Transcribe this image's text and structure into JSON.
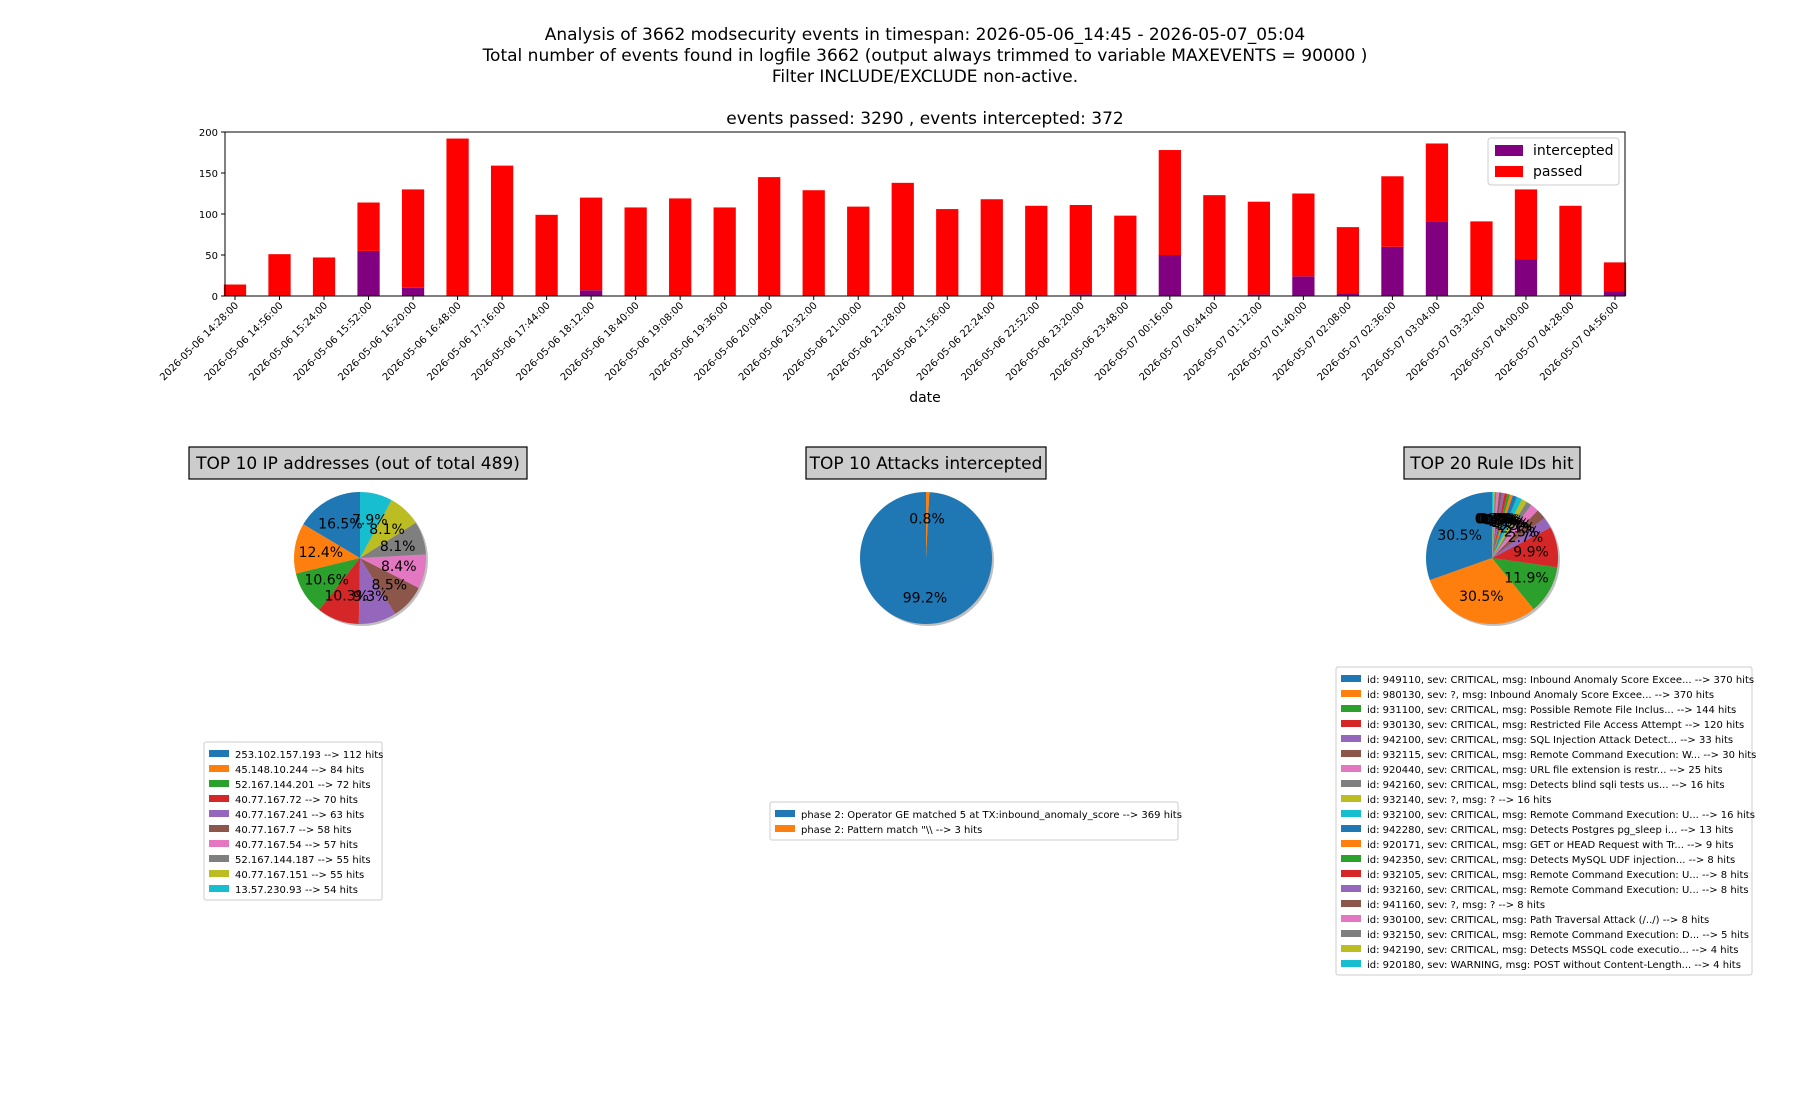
{
  "header": {
    "line1": "Analysis of 3662 modsecurity events in timespan: 2026-05-06_14:45 - 2026-05-07_05:04",
    "line2": "Total number of events found in logfile 3662 (output always trimmed to variable MAXEVENTS = 90000 )",
    "line3": "Filter INCLUDE/EXCLUDE non-active."
  },
  "colors": {
    "intercepted": "#800080",
    "passed": "#ff0000",
    "palette": [
      "#1f77b4",
      "#ff7f0e",
      "#2ca02c",
      "#d62728",
      "#9467bd",
      "#8c564b",
      "#e377c2",
      "#7f7f7f",
      "#bcbd22",
      "#17becf"
    ],
    "title_box": "#cccccc"
  },
  "chart_data": [
    {
      "type": "bar",
      "stacked": true,
      "title": "events passed: 3290 , events intercepted: 372",
      "xlabel": "date",
      "ylabel": "",
      "ylim": [
        0,
        200
      ],
      "yticks": [
        0,
        50,
        100,
        150,
        200
      ],
      "legend": "top-right",
      "categories": [
        "2026-05-06 14:28:00",
        "2026-05-06 14:56:00",
        "2026-05-06 15:24:00",
        "2026-05-06 15:52:00",
        "2026-05-06 16:20:00",
        "2026-05-06 16:48:00",
        "2026-05-06 17:16:00",
        "2026-05-06 17:44:00",
        "2026-05-06 18:12:00",
        "2026-05-06 18:40:00",
        "2026-05-06 19:08:00",
        "2026-05-06 19:36:00",
        "2026-05-06 20:04:00",
        "2026-05-06 20:32:00",
        "2026-05-06 21:00:00",
        "2026-05-06 21:28:00",
        "2026-05-06 21:56:00",
        "2026-05-06 22:24:00",
        "2026-05-06 22:52:00",
        "2026-05-06 23:20:00",
        "2026-05-06 23:48:00",
        "2026-05-07 00:16:00",
        "2026-05-07 00:44:00",
        "2026-05-07 01:12:00",
        "2026-05-07 01:40:00",
        "2026-05-07 02:08:00",
        "2026-05-07 02:36:00",
        "2026-05-07 03:04:00",
        "2026-05-07 03:32:00",
        "2026-05-07 04:00:00",
        "2026-05-07 04:28:00",
        "2026-05-07 04:56:00"
      ],
      "series": [
        {
          "name": "intercepted",
          "values": [
            0,
            1,
            1,
            55,
            10,
            1,
            0,
            0,
            7,
            0,
            1,
            1,
            0,
            0,
            1,
            0,
            0,
            0,
            0,
            2,
            2,
            50,
            2,
            2,
            24,
            3,
            60,
            91,
            0,
            45,
            2,
            6
          ]
        },
        {
          "name": "passed",
          "values": [
            14,
            50,
            46,
            59,
            120,
            191,
            159,
            99,
            113,
            108,
            118,
            107,
            145,
            129,
            108,
            138,
            106,
            118,
            110,
            109,
            96,
            128,
            121,
            113,
            101,
            81,
            86,
            95,
            91,
            85,
            108,
            35
          ]
        }
      ]
    },
    {
      "type": "pie",
      "title": "TOP 10 IP addresses (out of total 489)",
      "labels": [
        "253.102.157.193 --> 112 hits",
        "45.148.10.244 --> 84 hits",
        "52.167.144.201 --> 72 hits",
        "40.77.167.72 --> 70 hits",
        "40.77.167.241 --> 63 hits",
        "40.77.167.7 --> 58 hits",
        "40.77.167.54 --> 57 hits",
        "52.167.144.187 --> 55 hits",
        "40.77.167.151 --> 55 hits",
        "13.57.230.93 --> 54 hits"
      ],
      "values": [
        112,
        84,
        72,
        70,
        63,
        58,
        57,
        55,
        55,
        54
      ],
      "pct_labels": [
        "16.5%",
        "12.4%",
        "10.6%",
        "10.3%",
        "9.3%",
        "8.5%",
        "8.4%",
        "8.1%",
        "8.1%",
        "7.9%"
      ]
    },
    {
      "type": "pie",
      "title": "TOP 10 Attacks intercepted",
      "labels": [
        "phase 2: Operator GE matched 5 at TX:inbound_anomaly_score --> 369 hits",
        "phase 2: Pattern match \"\\\\ --> 3 hits"
      ],
      "values": [
        369,
        3
      ],
      "pct_labels": [
        "99.2%",
        "0.8%"
      ]
    },
    {
      "type": "pie",
      "title": "TOP 20 Rule IDs hit",
      "labels": [
        "id: 949110, sev: CRITICAL, msg: Inbound Anomaly Score Excee... --> 370 hits",
        "id: 980130, sev: ?, msg: Inbound Anomaly Score Excee... --> 370 hits",
        "id: 931100, sev: CRITICAL, msg: Possible Remote File Inclus... --> 144 hits",
        "id: 930130, sev: CRITICAL, msg: Restricted File Access Attempt --> 120 hits",
        "id: 942100, sev: CRITICAL, msg: SQL Injection Attack Detect... --> 33 hits",
        "id: 932115, sev: CRITICAL, msg: Remote Command Execution: W... --> 30 hits",
        "id: 920440, sev: CRITICAL, msg: URL file extension is restr... --> 25 hits",
        "id: 942160, sev: CRITICAL, msg: Detects blind sqli tests us... --> 16 hits",
        "id: 932140, sev: ?, msg: ? --> 16 hits",
        "id: 932100, sev: CRITICAL, msg: Remote Command Execution: U... --> 16 hits",
        "id: 942280, sev: CRITICAL, msg: Detects Postgres pg_sleep i... --> 13 hits",
        "id: 920171, sev: CRITICAL, msg: GET or HEAD Request with Tr... --> 9 hits",
        "id: 942350, sev: CRITICAL, msg: Detects MySQL UDF injection... --> 8 hits",
        "id: 932105, sev: CRITICAL, msg: Remote Command Execution: U... --> 8 hits",
        "id: 932160, sev: CRITICAL, msg: Remote Command Execution: U... --> 8 hits",
        "id: 941160, sev: ?, msg: ? --> 8 hits",
        "id: 930100, sev: CRITICAL, msg: Path Traversal Attack (/../) --> 8 hits",
        "id: 932150, sev: CRITICAL, msg: Remote Command Execution: D... --> 5 hits",
        "id: 942190, sev: CRITICAL, msg: Detects MSSQL code executio... --> 4 hits",
        "id: 920180, sev: WARNING, msg: POST without Content-Length... --> 4 hits"
      ],
      "values": [
        370,
        370,
        144,
        120,
        33,
        30,
        25,
        16,
        16,
        16,
        13,
        9,
        8,
        8,
        8,
        8,
        8,
        5,
        4,
        4
      ],
      "pct_labels": [
        "30.5%",
        "30.5%",
        "11.9%",
        "9.9%",
        "2.7%",
        "2.5%",
        "2.1%",
        "1.3%",
        "1.3%",
        "1.3%",
        "1.1%",
        "0.7%",
        "0.7%",
        "0.7%",
        "0.7%",
        "0.7%",
        "0.7%",
        "0.4%",
        "0.3%",
        "0.3%"
      ]
    }
  ]
}
